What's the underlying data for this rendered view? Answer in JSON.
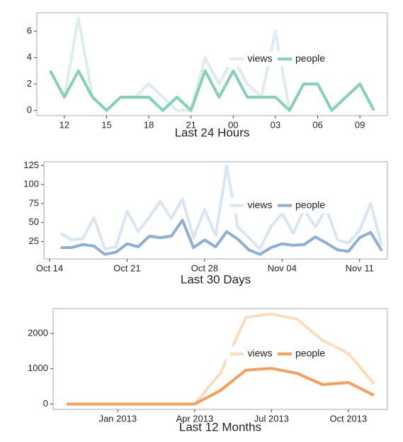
{
  "chart_data": [
    {
      "type": "line",
      "xlabel": "Last 24 Hours",
      "legend": "center right",
      "categories": [
        null,
        "12",
        null,
        null,
        "15",
        null,
        null,
        "18",
        null,
        null,
        "21",
        null,
        null,
        "00",
        null,
        null,
        "03",
        null,
        null,
        "06",
        null,
        null,
        "09",
        null
      ],
      "series": [
        {
          "name": "views",
          "color": "#dcecf1",
          "values": [
            3,
            1,
            7,
            1,
            0,
            1,
            1,
            2,
            1,
            0,
            0,
            4,
            2,
            4,
            2,
            1,
            6,
            0,
            2,
            2,
            0,
            1,
            2,
            0
          ]
        },
        {
          "name": "people",
          "color": "#86d0b8",
          "values": [
            3,
            1,
            3,
            1,
            0,
            1,
            1,
            1,
            0,
            1,
            0,
            3,
            1,
            3,
            1,
            1,
            1,
            0,
            2,
            2,
            0,
            1,
            2,
            0
          ]
        }
      ],
      "ylim": [
        -0.4,
        7.4
      ],
      "yticks": [
        0,
        2,
        4,
        6
      ]
    },
    {
      "type": "line",
      "xlabel": "Last 30 Days",
      "legend": "center right",
      "categories": [
        "Oct 14",
        null,
        null,
        null,
        null,
        null,
        null,
        "Oct 21",
        null,
        null,
        null,
        null,
        null,
        null,
        "Oct 28",
        null,
        null,
        null,
        null,
        null,
        null,
        "Nov 04",
        null,
        null,
        null,
        null,
        null,
        null,
        "Nov 11",
        null,
        null
      ],
      "series": [
        {
          "name": "views",
          "color": "#d9e6f1",
          "values": [
            null,
            36,
            27,
            29,
            56,
            15,
            18,
            65,
            38,
            57,
            78,
            55,
            81,
            30,
            67,
            33,
            124,
            44,
            30,
            15,
            45,
            62,
            36,
            67,
            44,
            68,
            27,
            23,
            40,
            75,
            20
          ]
        },
        {
          "name": "people",
          "color": "#8eaed3",
          "values": [
            null,
            17,
            17,
            21,
            19,
            8,
            11,
            22,
            18,
            32,
            30,
            32,
            53,
            17,
            27,
            18,
            38,
            28,
            14,
            8,
            17,
            22,
            20,
            21,
            31,
            23,
            14,
            12,
            30,
            37,
            13
          ]
        }
      ],
      "ylim": [
        2,
        130
      ],
      "yticks": [
        25,
        50,
        75,
        100,
        125
      ]
    },
    {
      "type": "line",
      "xlabel": "Last 12 Months",
      "legend": "center right",
      "categories": [
        null,
        null,
        "Jan 2013",
        null,
        null,
        "Apr 2013",
        null,
        null,
        "Jul 2013",
        null,
        null,
        "Oct 2013",
        null
      ],
      "series": [
        {
          "name": "views",
          "color": "#fcdcbb",
          "values": [
            0,
            0,
            0,
            0,
            0,
            0,
            870,
            2450,
            2550,
            2400,
            1800,
            1430,
            580
          ]
        },
        {
          "name": "people",
          "color": "#f59f5c",
          "values": [
            0,
            0,
            0,
            0,
            0,
            0,
            380,
            960,
            1010,
            870,
            550,
            610,
            250
          ]
        }
      ],
      "ylim": [
        -150,
        2700
      ],
      "yticks": [
        0,
        1000,
        2000
      ]
    }
  ]
}
